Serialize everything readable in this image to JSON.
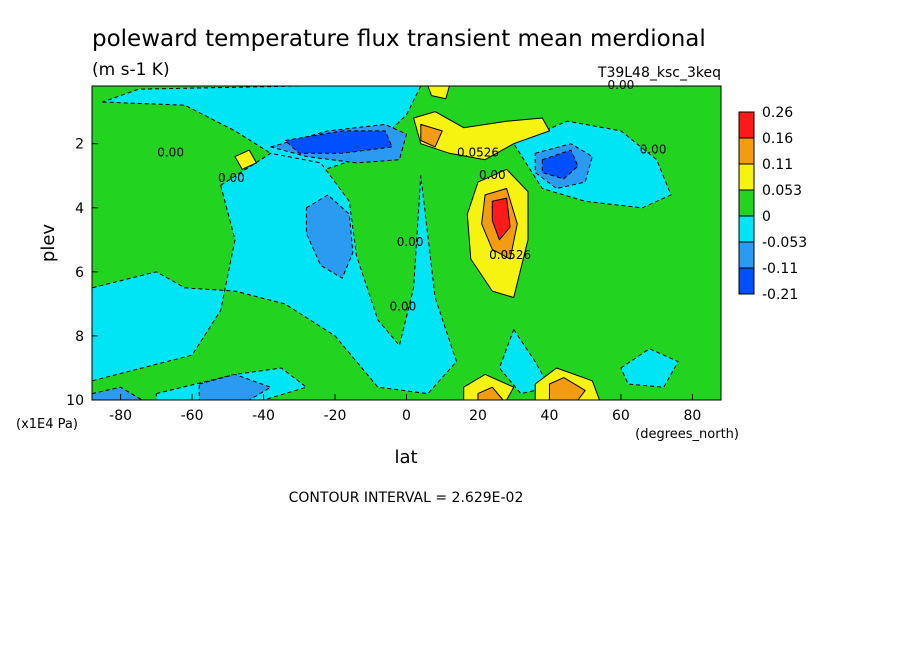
{
  "chart_data": {
    "type": "heatmap",
    "title": "poleward temperature flux transient mean merdional",
    "units": "(m s-1 K)",
    "dataset": "T39L48_ksc_3keq",
    "xlabel": "lat",
    "x_units": "(degrees_north)",
    "ylabel": "plev",
    "y_units": "(x1E4 Pa)",
    "x_ticks": [
      "-80",
      "-60",
      "-40",
      "-20",
      "0",
      "20",
      "40",
      "60",
      "80"
    ],
    "y_ticks": [
      "2",
      "4",
      "6",
      "8",
      "10"
    ],
    "xlim": [
      -88,
      88
    ],
    "ylim": [
      10,
      0.2
    ],
    "footer": "CONTOUR INTERVAL = 2.629E-02",
    "colorbar": {
      "labels": [
        "0.26",
        "0.16",
        "0.11",
        "0.053",
        "0",
        "-0.053",
        "-0.11",
        "-0.21"
      ],
      "colors": [
        "#ff1a1a",
        "#f39c12",
        "#f5f30f",
        "#22d41f",
        "#00e5f5",
        "#2a9bf0",
        "#0050ff"
      ]
    },
    "contour_labels": [
      {
        "text": "0.00",
        "lat": -66,
        "plev": 2.4
      },
      {
        "text": "0.00",
        "lat": -49,
        "plev": 3.2
      },
      {
        "text": "0.00",
        "lat": 1,
        "plev": 5.2
      },
      {
        "text": "0.00",
        "lat": -1,
        "plev": 7.2
      },
      {
        "text": "0.0526",
        "lat": 20,
        "plev": 2.4
      },
      {
        "text": "0.00",
        "lat": 24,
        "plev": 3.1
      },
      {
        "text": "0.0526",
        "lat": 29,
        "plev": 5.6
      },
      {
        "text": "0.00",
        "lat": 60,
        "plev": 0.3
      },
      {
        "text": "0.00",
        "lat": 69,
        "plev": 2.3
      }
    ],
    "regions": [
      {
        "name": "upper-cyan-band",
        "value": -0.03,
        "points": [
          [
            -85,
            0.7
          ],
          [
            -62,
            0.8
          ],
          [
            -48,
            1.6
          ],
          [
            -28,
            3.0
          ],
          [
            -12,
            2.4
          ],
          [
            0,
            1.1
          ],
          [
            4,
            0.2
          ],
          [
            -30,
            0.2
          ],
          [
            -75,
            0.3
          ]
        ]
      },
      {
        "name": "nh-upper-cyan",
        "value": -0.03,
        "points": [
          [
            30,
            2.0
          ],
          [
            45,
            1.3
          ],
          [
            60,
            1.6
          ],
          [
            70,
            2.5
          ],
          [
            74,
            3.6
          ],
          [
            66,
            4.0
          ],
          [
            50,
            3.8
          ],
          [
            38,
            3.4
          ]
        ]
      },
      {
        "name": "sh-midlat-cyan",
        "value": -0.03,
        "points": [
          [
            -52,
            3.3
          ],
          [
            -38,
            2.3
          ],
          [
            -24,
            2.6
          ],
          [
            -16,
            3.8
          ],
          [
            -14,
            5.5
          ],
          [
            -8,
            7.5
          ],
          [
            -2,
            8.3
          ],
          [
            2,
            6.5
          ],
          [
            4,
            3.0
          ],
          [
            8,
            6.8
          ],
          [
            14,
            8.8
          ],
          [
            6,
            9.8
          ],
          [
            -8,
            9.6
          ],
          [
            -20,
            8.0
          ],
          [
            -34,
            7.0
          ],
          [
            -48,
            6.6
          ],
          [
            -62,
            6.5
          ],
          [
            -70,
            6.0
          ],
          [
            -88,
            6.5
          ],
          [
            -88,
            9.4
          ],
          [
            -74,
            9.0
          ],
          [
            -60,
            8.6
          ],
          [
            -52,
            7.2
          ],
          [
            -48,
            5.0
          ]
        ]
      },
      {
        "name": "sh-lower-cyan",
        "value": -0.03,
        "points": [
          [
            -70,
            9.8
          ],
          [
            -48,
            9.2
          ],
          [
            -35,
            9.0
          ],
          [
            -28,
            9.6
          ],
          [
            -40,
            10.0
          ],
          [
            -70,
            10.0
          ]
        ]
      },
      {
        "name": "nh-lower-cyan",
        "value": -0.03,
        "points": [
          [
            30,
            7.8
          ],
          [
            36,
            8.8
          ],
          [
            40,
            9.6
          ],
          [
            32,
            9.8
          ],
          [
            26,
            9.0
          ]
        ]
      },
      {
        "name": "nh-right-cyan",
        "value": -0.03,
        "points": [
          [
            60,
            9.0
          ],
          [
            68,
            8.4
          ],
          [
            76,
            8.8
          ],
          [
            72,
            9.6
          ],
          [
            62,
            9.5
          ]
        ]
      },
      {
        "name": "sh-upper-blue",
        "value": -0.08,
        "points": [
          [
            -38,
            2.1
          ],
          [
            -22,
            1.6
          ],
          [
            -6,
            1.4
          ],
          [
            0,
            1.7
          ],
          [
            -2,
            2.5
          ],
          [
            -14,
            2.6
          ],
          [
            -28,
            2.4
          ]
        ]
      },
      {
        "name": "nh-upper-blue",
        "value": -0.08,
        "points": [
          [
            36,
            2.3
          ],
          [
            46,
            2.0
          ],
          [
            52,
            2.4
          ],
          [
            50,
            3.2
          ],
          [
            42,
            3.4
          ],
          [
            36,
            2.9
          ]
        ]
      },
      {
        "name": "sh-midlat-blue",
        "value": -0.08,
        "points": [
          [
            -28,
            4.0
          ],
          [
            -22,
            3.6
          ],
          [
            -16,
            4.2
          ],
          [
            -15,
            5.4
          ],
          [
            -18,
            6.2
          ],
          [
            -24,
            5.8
          ],
          [
            -28,
            4.8
          ]
        ]
      },
      {
        "name": "sh-lower-blue",
        "value": -0.08,
        "points": [
          [
            -58,
            9.5
          ],
          [
            -48,
            9.2
          ],
          [
            -38,
            9.6
          ],
          [
            -44,
            10.0
          ],
          [
            -58,
            10.0
          ]
        ]
      },
      {
        "name": "sh-bottom-left-blue",
        "value": -0.08,
        "points": [
          [
            -88,
            9.8
          ],
          [
            -80,
            9.6
          ],
          [
            -74,
            10.0
          ],
          [
            -88,
            10.0
          ]
        ]
      },
      {
        "name": "sh-upper-darkblue",
        "value": -0.15,
        "points": [
          [
            -34,
            1.9
          ],
          [
            -18,
            1.6
          ],
          [
            -6,
            1.6
          ],
          [
            -4,
            2.1
          ],
          [
            -18,
            2.3
          ],
          [
            -30,
            2.3
          ]
        ]
      },
      {
        "name": "nh-upper-darkblue",
        "value": -0.15,
        "points": [
          [
            38,
            2.5
          ],
          [
            46,
            2.2
          ],
          [
            48,
            2.7
          ],
          [
            44,
            3.1
          ],
          [
            38,
            2.9
          ]
        ]
      },
      {
        "name": "nh-jet-yellow",
        "value": 0.08,
        "points": [
          [
            2,
            1.2
          ],
          [
            8,
            1.0
          ],
          [
            16,
            1.5
          ],
          [
            28,
            1.3
          ],
          [
            38,
            1.2
          ],
          [
            40,
            1.6
          ],
          [
            30,
            2.0
          ],
          [
            22,
            2.5
          ],
          [
            12,
            2.3
          ],
          [
            4,
            2.0
          ]
        ]
      },
      {
        "name": "nh-midlevel-yellow",
        "value": 0.08,
        "points": [
          [
            20,
            3.2
          ],
          [
            28,
            2.8
          ],
          [
            34,
            3.5
          ],
          [
            34,
            5.0
          ],
          [
            30,
            6.8
          ],
          [
            24,
            6.6
          ],
          [
            18,
            5.6
          ],
          [
            17,
            4.2
          ]
        ]
      },
      {
        "name": "nh-lower-yellow",
        "value": 0.08,
        "points": [
          [
            16,
            9.6
          ],
          [
            22,
            9.2
          ],
          [
            30,
            9.6
          ],
          [
            28,
            10.0
          ],
          [
            16,
            10.0
          ]
        ]
      },
      {
        "name": "nh-lower-yellow-2",
        "value": 0.08,
        "points": [
          [
            36,
            9.5
          ],
          [
            42,
            9.0
          ],
          [
            52,
            9.4
          ],
          [
            54,
            10.0
          ],
          [
            36,
            10.0
          ]
        ]
      },
      {
        "name": "sh-small-yellow",
        "value": 0.08,
        "points": [
          [
            -48,
            2.4
          ],
          [
            -44,
            2.2
          ],
          [
            -42,
            2.6
          ],
          [
            -46,
            2.8
          ]
        ]
      },
      {
        "name": "nh-top-yellow",
        "value": 0.08,
        "points": [
          [
            6,
            0.2
          ],
          [
            12,
            0.2
          ],
          [
            11,
            0.6
          ],
          [
            7,
            0.5
          ]
        ]
      },
      {
        "name": "nh-jet-orange",
        "value": 0.13,
        "points": [
          [
            4,
            1.4
          ],
          [
            10,
            1.6
          ],
          [
            8,
            2.1
          ],
          [
            4,
            1.9
          ]
        ]
      },
      {
        "name": "nh-midlevel-orange",
        "value": 0.13,
        "points": [
          [
            22,
            3.6
          ],
          [
            28,
            3.4
          ],
          [
            31,
            4.5
          ],
          [
            29,
            5.6
          ],
          [
            24,
            5.3
          ],
          [
            21,
            4.5
          ]
        ]
      },
      {
        "name": "nh-lower-orange",
        "value": 0.13,
        "points": [
          [
            40,
            9.5
          ],
          [
            44,
            9.3
          ],
          [
            50,
            9.7
          ],
          [
            48,
            10.0
          ],
          [
            40,
            10.0
          ]
        ]
      },
      {
        "name": "nh-lower-orange-2",
        "value": 0.13,
        "points": [
          [
            20,
            9.8
          ],
          [
            24,
            9.6
          ],
          [
            27,
            10.0
          ],
          [
            20,
            10.0
          ]
        ]
      },
      {
        "name": "nh-midlevel-red",
        "value": 0.2,
        "points": [
          [
            24,
            3.8
          ],
          [
            28,
            3.7
          ],
          [
            29,
            4.6
          ],
          [
            26,
            5.0
          ],
          [
            24,
            4.4
          ]
        ]
      }
    ]
  }
}
